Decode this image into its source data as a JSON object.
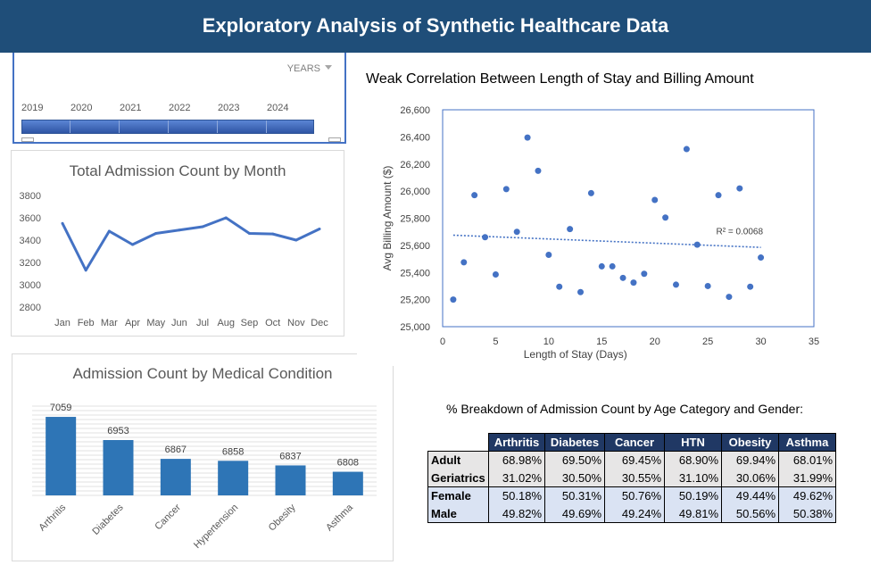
{
  "dashboard": {
    "title": "Exploratory Analysis of Synthetic Healthcare Data"
  },
  "timeline": {
    "label": "YEARS",
    "years": [
      "2019",
      "2020",
      "2021",
      "2022",
      "2023",
      "2024"
    ]
  },
  "chart_data": [
    {
      "type": "line",
      "title": "Total Admission Count by Month",
      "categories": [
        "Jan",
        "Feb",
        "Mar",
        "Apr",
        "May",
        "Jun",
        "Jul",
        "Aug",
        "Sep",
        "Oct",
        "Nov",
        "Dec"
      ],
      "values": [
        3550,
        3130,
        3480,
        3360,
        3460,
        3490,
        3520,
        3600,
        3460,
        3455,
        3400,
        3500
      ],
      "ylim": [
        2800,
        3800
      ],
      "yticks": [
        2800,
        3000,
        3200,
        3400,
        3600,
        3800
      ],
      "grid": false,
      "color": "#4472c4"
    },
    {
      "type": "bar",
      "title": "Admission Count by Medical Condition",
      "categories": [
        "Arthritis",
        "Diabetes",
        "Cancer",
        "Hypertension",
        "Obesity",
        "Asthma"
      ],
      "values": [
        7059,
        6953,
        6867,
        6858,
        6837,
        6808
      ],
      "ylim": [
        6700,
        7100
      ],
      "grid": true,
      "color": "#2e75b6"
    },
    {
      "type": "scatter",
      "title": "Weak Correlation Between Length of Stay and Billing Amount",
      "xlabel": "Length of Stay (Days)",
      "ylabel": "Avg Billing Amount ($)",
      "xlim": [
        0,
        35
      ],
      "ylim": [
        25000,
        26600
      ],
      "xticks": [
        "0",
        "5",
        "10",
        "15",
        "20",
        "25",
        "30",
        "35"
      ],
      "yticks": [
        "25,000",
        "25,200",
        "25,400",
        "25,600",
        "25,800",
        "26,000",
        "26,200",
        "26,400",
        "26,600"
      ],
      "x": [
        1,
        2,
        3,
        4,
        5,
        6,
        7,
        8,
        9,
        10,
        11,
        12,
        13,
        14,
        15,
        16,
        17,
        18,
        19,
        20,
        21,
        22,
        23,
        24,
        25,
        26,
        27,
        28,
        29,
        30
      ],
      "y": [
        25200,
        25475,
        25970,
        25660,
        25385,
        26015,
        25700,
        26395,
        26150,
        25530,
        25295,
        25720,
        25255,
        25985,
        25445,
        25445,
        25360,
        25325,
        25390,
        25935,
        25805,
        25310,
        26310,
        25605,
        25300,
        25970,
        25220,
        26020,
        25295,
        25510
      ],
      "trendline": {
        "y_at_xmin": 25675,
        "y_at_xmax": 25585,
        "label": "R² = 0.0068"
      },
      "color": "#4472c4"
    }
  ],
  "breakdown": {
    "title": "% Breakdown of Admission Count by Age Category and Gender:",
    "columns": [
      "Arthritis",
      "Diabetes",
      "Cancer",
      "HTN",
      "Obesity",
      "Asthma"
    ],
    "rows": [
      {
        "label": "Adult",
        "values": [
          "68.98%",
          "69.50%",
          "69.45%",
          "68.90%",
          "69.94%",
          "68.01%"
        ]
      },
      {
        "label": "Geriatrics",
        "values": [
          "31.02%",
          "30.50%",
          "30.55%",
          "31.10%",
          "30.06%",
          "31.99%"
        ]
      },
      {
        "label": "Female",
        "values": [
          "50.18%",
          "50.31%",
          "50.76%",
          "50.19%",
          "49.44%",
          "49.62%"
        ]
      },
      {
        "label": "Male",
        "values": [
          "49.82%",
          "49.69%",
          "49.24%",
          "49.81%",
          "50.56%",
          "50.38%"
        ]
      }
    ]
  }
}
